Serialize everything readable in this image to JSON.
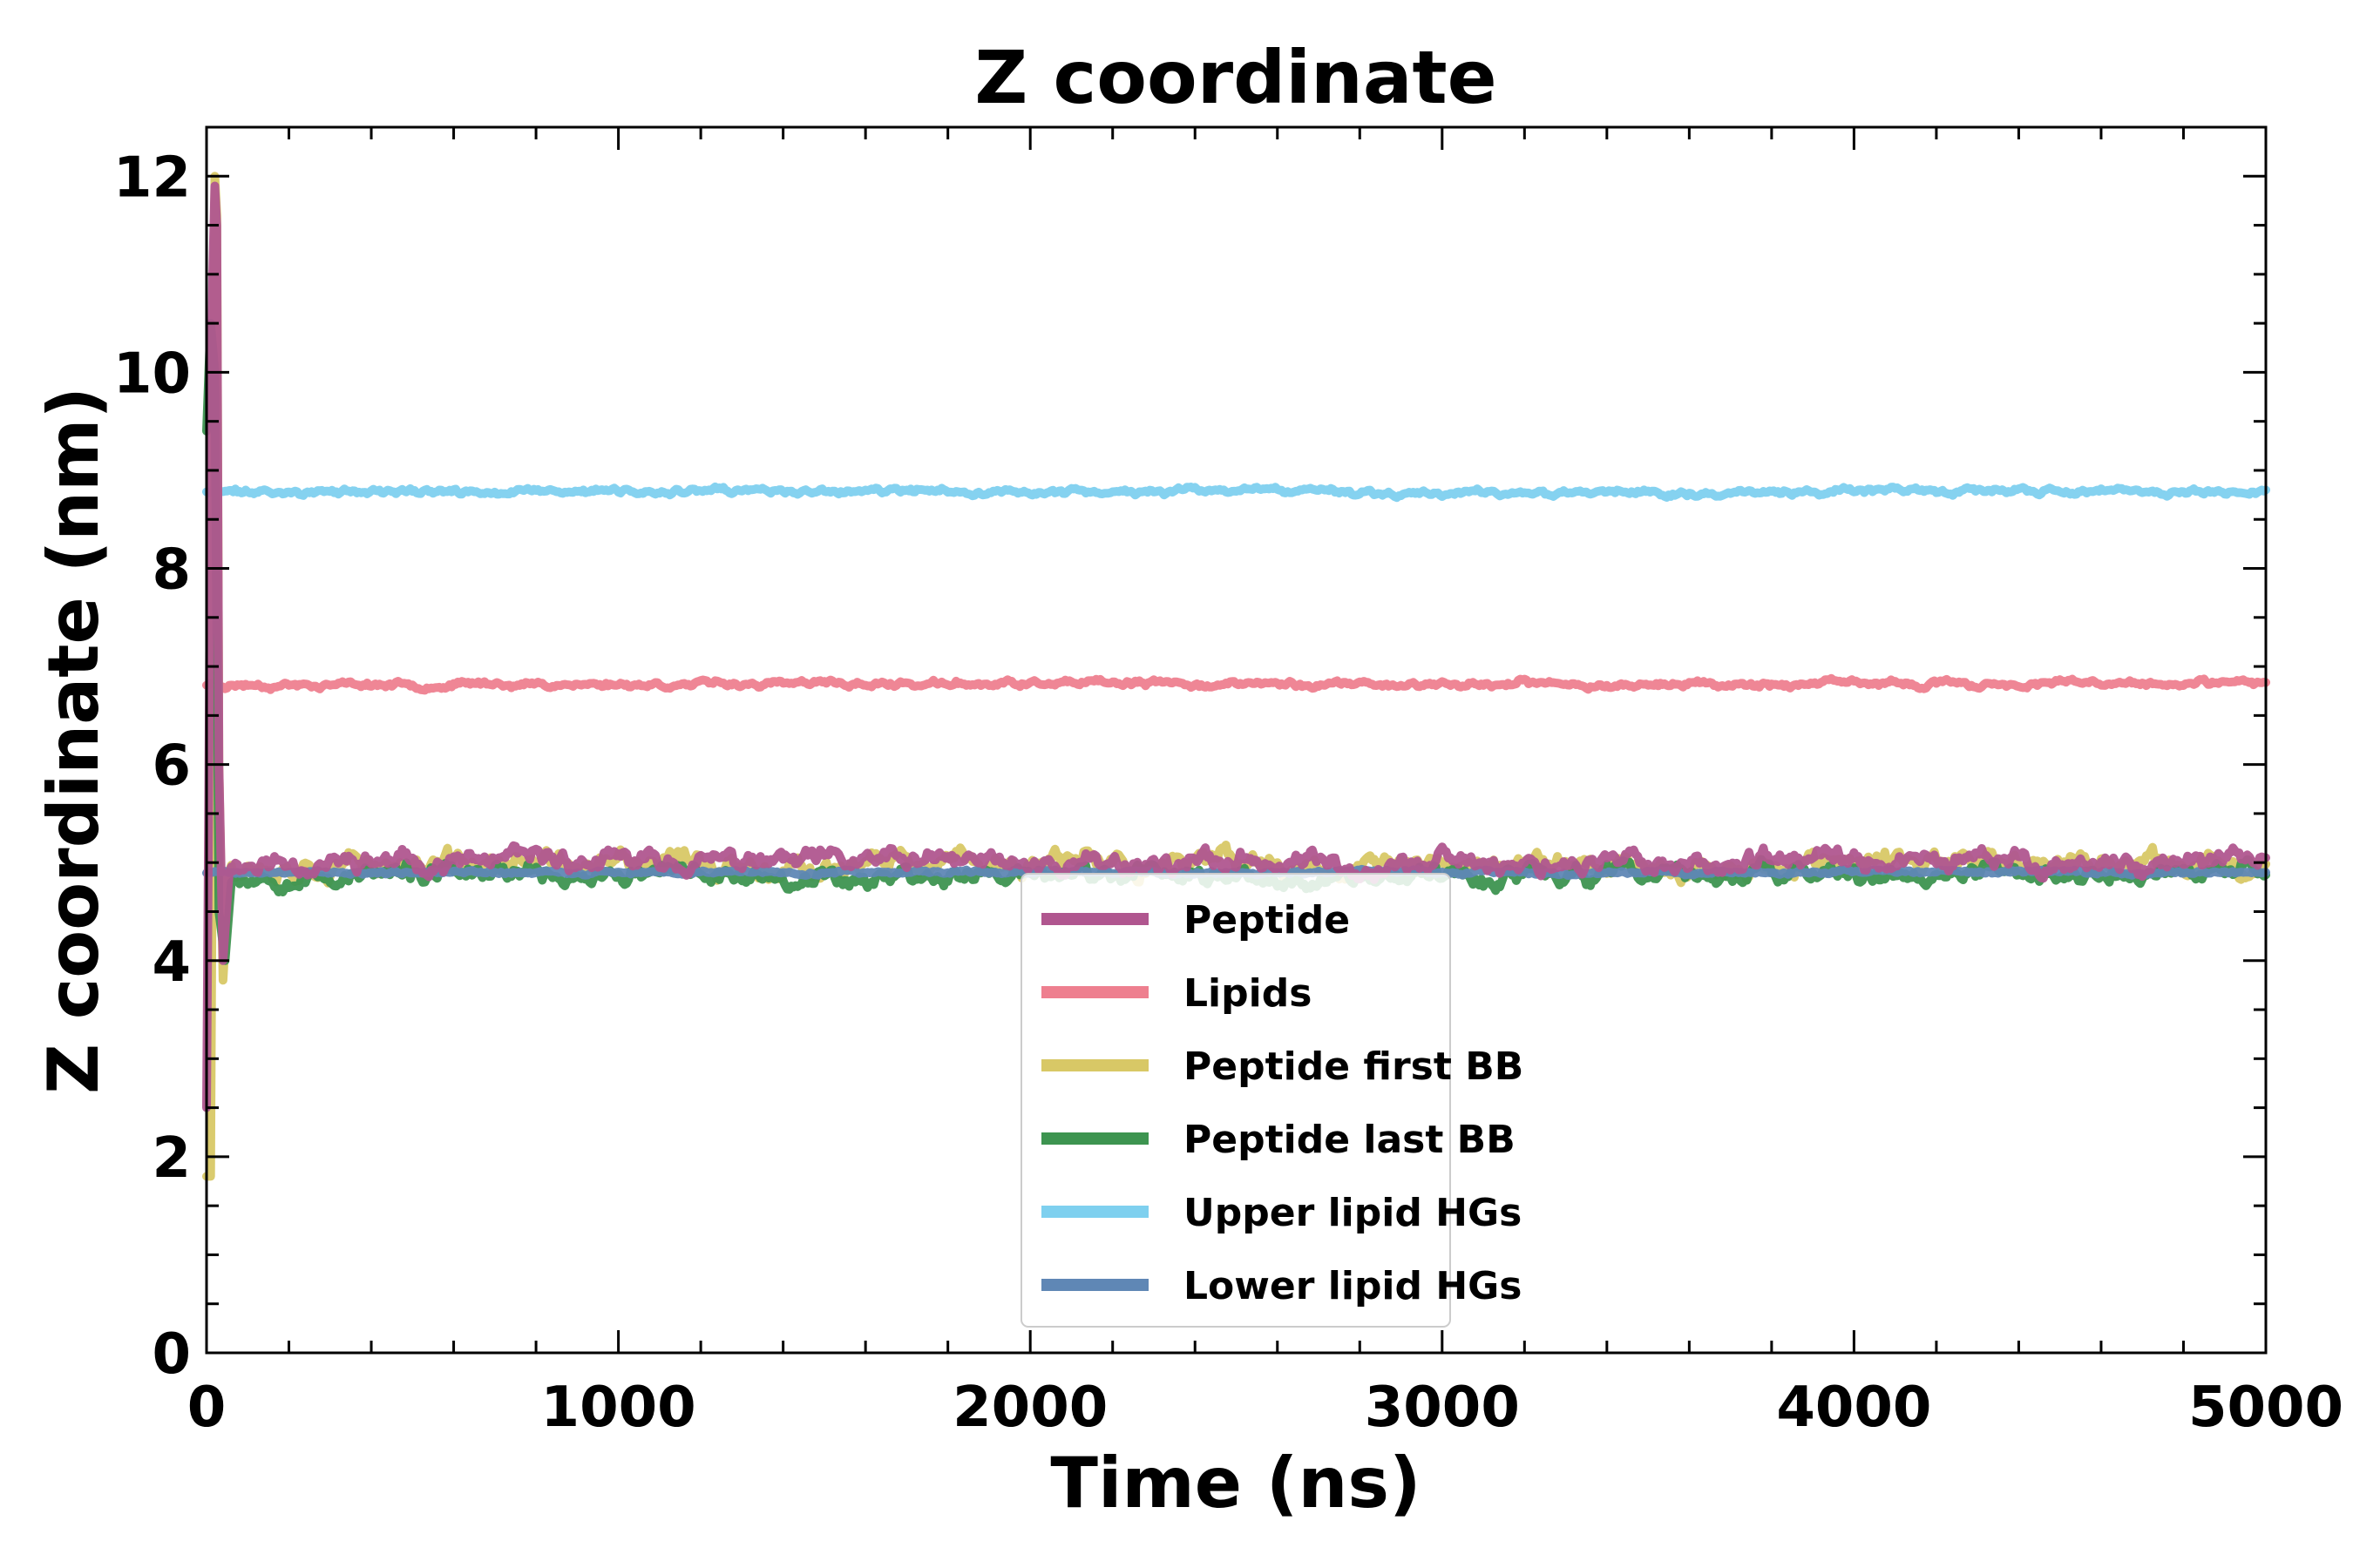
{
  "chart_data": {
    "type": "line",
    "title": "Z coordinate",
    "xlabel": "Time (ns)",
    "ylabel": "Z coordinate (nm)",
    "xlim": [
      0,
      5000
    ],
    "ylim": [
      0,
      12.5
    ],
    "xticks": [
      0,
      1000,
      2000,
      3000,
      4000,
      5000
    ],
    "xtick_labels": [
      "0",
      "1000",
      "2000",
      "3000",
      "4000",
      "5000"
    ],
    "yticks": [
      0,
      2,
      4,
      6,
      8,
      10,
      12
    ],
    "ytick_labels": [
      "0",
      "2",
      "4",
      "6",
      "8",
      "10",
      "12"
    ],
    "legend_position": "lower-center",
    "grid": false,
    "series": [
      {
        "name": "Peptide",
        "color": "#b0568f",
        "initial": [
          [
            0,
            2.5
          ],
          [
            5,
            5.5
          ],
          [
            10,
            9.0
          ],
          [
            15,
            11.0
          ],
          [
            20,
            11.9
          ],
          [
            25,
            11.5
          ],
          [
            30,
            6.0
          ],
          [
            40,
            4.0
          ],
          [
            55,
            4.9
          ]
        ],
        "mean": 5.0,
        "noise": 0.11,
        "seed": 11
      },
      {
        "name": "Lipids",
        "color": "#ee7f8f",
        "initial": [],
        "mean": 6.82,
        "noise": 0.035,
        "seed": 23
      },
      {
        "name": "Peptide first BB",
        "color": "#d8c866",
        "initial": [
          [
            0,
            1.8
          ],
          [
            10,
            1.8
          ],
          [
            15,
            6.0
          ],
          [
            20,
            12.0
          ],
          [
            25,
            11.6
          ],
          [
            30,
            6.0
          ],
          [
            40,
            3.8
          ],
          [
            55,
            4.9
          ]
        ],
        "mean": 4.98,
        "noise": 0.12,
        "seed": 37
      },
      {
        "name": "Peptide last BB",
        "color": "#3d9450",
        "initial": [
          [
            0,
            9.4
          ],
          [
            10,
            10.5
          ],
          [
            20,
            10.0
          ],
          [
            30,
            4.5
          ],
          [
            45,
            4.0
          ],
          [
            60,
            4.8
          ]
        ],
        "mean": 4.87,
        "noise": 0.1,
        "seed": 53
      },
      {
        "name": "Upper lipid HGs",
        "color": "#7ed0ef",
        "initial": [],
        "mean": 8.78,
        "noise": 0.035,
        "seed": 71
      },
      {
        "name": "Lower lipid HGs",
        "color": "#5f87b5",
        "initial": [],
        "mean": 4.9,
        "noise": 0.02,
        "seed": 89
      }
    ]
  }
}
